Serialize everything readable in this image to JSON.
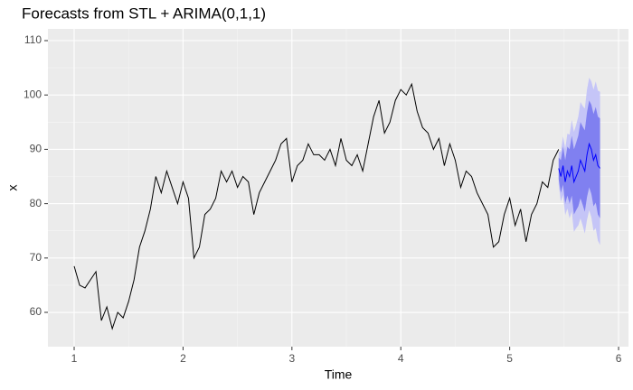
{
  "chart_data": {
    "type": "forecast",
    "title": "Forecasts from STL +  ARIMA(0,1,1)",
    "x_label": "Time",
    "y_label": "x",
    "xlim": [
      0.759,
      6.091
    ],
    "ylim": [
      53.69,
      112.16
    ],
    "xticks": [
      1,
      2,
      3,
      4,
      5,
      6
    ],
    "yticks": [
      60,
      70,
      80,
      90,
      100,
      110
    ],
    "grid": true,
    "color": "#000000",
    "x": [
      1,
      1.05,
      1.1,
      1.15,
      1.2,
      1.25,
      1.3,
      1.35,
      1.4,
      1.45,
      1.5,
      1.55,
      1.6,
      1.65,
      1.7,
      1.75,
      1.8,
      1.85,
      1.9,
      1.95,
      2,
      2.05,
      2.1,
      2.15,
      2.2,
      2.25,
      2.3,
      2.35,
      2.4,
      2.45,
      2.5,
      2.55,
      2.6,
      2.65,
      2.7,
      2.75,
      2.8,
      2.85,
      2.9,
      2.95,
      3,
      3.05,
      3.1,
      3.15,
      3.2,
      3.25,
      3.3,
      3.35,
      3.4,
      3.45,
      3.5,
      3.55,
      3.6,
      3.65,
      3.7,
      3.75,
      3.8,
      3.85,
      3.9,
      3.95,
      4,
      4.05,
      4.1,
      4.15,
      4.2,
      4.25,
      4.3,
      4.35,
      4.4,
      4.45,
      4.5,
      4.55,
      4.6,
      4.65,
      4.7,
      4.75,
      4.8,
      4.85,
      4.9,
      4.95,
      5,
      5.05,
      5.1,
      5.15,
      5.2,
      5.25,
      5.3,
      5.35,
      5.4,
      5.45
    ],
    "values": [
      68.5,
      65,
      64.5,
      66,
      67.5,
      58.5,
      61,
      57,
      60,
      59,
      62,
      66,
      72,
      75,
      79,
      85,
      82,
      86,
      83,
      80,
      84,
      81,
      70,
      72,
      78,
      79,
      81,
      86,
      84,
      86,
      83,
      85,
      84,
      78,
      82,
      84,
      86,
      88,
      91,
      92,
      84,
      87,
      88,
      91,
      89,
      89,
      88,
      90,
      87,
      92,
      88,
      87,
      89,
      86,
      91,
      96,
      99,
      93,
      95,
      99,
      101,
      100,
      102,
      97,
      94,
      93,
      90,
      92,
      87,
      91,
      88,
      83,
      86,
      85,
      82,
      80,
      78,
      72,
      73,
      78,
      81,
      76,
      79,
      73,
      78,
      80,
      84,
      83,
      88,
      90
    ],
    "forecast": {
      "color": "#0000ff",
      "color80": "#8080f0",
      "color95": "#c5c5f7",
      "x": [
        5.45,
        5.47,
        5.49,
        5.51,
        5.53,
        5.55,
        5.57,
        5.59,
        5.61,
        5.63,
        5.65,
        5.67,
        5.69,
        5.71,
        5.73,
        5.75,
        5.77,
        5.79,
        5.81,
        5.83
      ],
      "mean": [
        86.5,
        85,
        87,
        84,
        86,
        85,
        87,
        84,
        85,
        86,
        88,
        87,
        86,
        89,
        91,
        90,
        88,
        89,
        87,
        86.5
      ],
      "lo80": [
        84.5,
        82,
        83.5,
        80,
        81.5,
        80,
        81.5,
        78,
        78.8,
        79.5,
        81,
        79.8,
        78.5,
        81.2,
        83,
        81.8,
        79.5,
        80.2,
        78,
        77.3
      ],
      "hi80": [
        88.5,
        88,
        90.5,
        88,
        90.5,
        90,
        92.5,
        90,
        91.2,
        92.5,
        95,
        94.2,
        93.5,
        96.8,
        99,
        98.2,
        96.5,
        97.8,
        96,
        95.7
      ],
      "lo95": [
        83.5,
        80.4,
        81.6,
        77.9,
        79.1,
        77.3,
        78.6,
        74.8,
        75.5,
        76,
        77.3,
        76,
        74.5,
        77,
        78.8,
        77.5,
        75,
        75.5,
        73.2,
        72.4
      ],
      "hi95": [
        89.5,
        89.6,
        92.4,
        90.1,
        92.9,
        92.7,
        95.4,
        93.2,
        94.5,
        96,
        98.7,
        98,
        97.5,
        101,
        103.2,
        102.5,
        101,
        102.5,
        100.8,
        100.6
      ]
    }
  }
}
